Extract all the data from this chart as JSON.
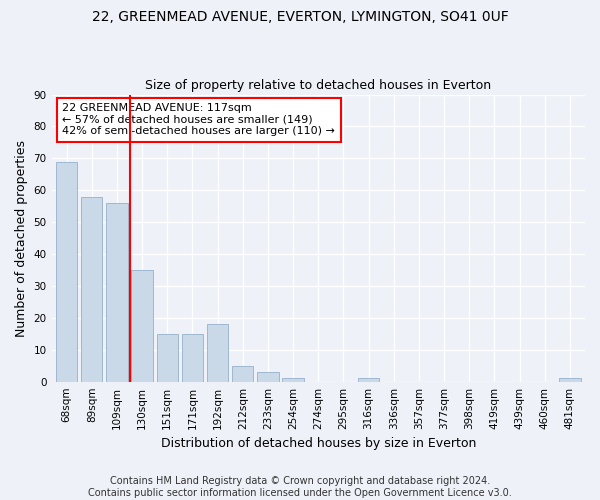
{
  "title1": "22, GREENMEAD AVENUE, EVERTON, LYMINGTON, SO41 0UF",
  "title2": "Size of property relative to detached houses in Everton",
  "xlabel": "Distribution of detached houses by size in Everton",
  "ylabel": "Number of detached properties",
  "categories": [
    "68sqm",
    "89sqm",
    "109sqm",
    "130sqm",
    "151sqm",
    "171sqm",
    "192sqm",
    "212sqm",
    "233sqm",
    "254sqm",
    "274sqm",
    "295sqm",
    "316sqm",
    "336sqm",
    "357sqm",
    "377sqm",
    "398sqm",
    "419sqm",
    "439sqm",
    "460sqm",
    "481sqm"
  ],
  "values": [
    69,
    58,
    56,
    35,
    15,
    15,
    18,
    5,
    3,
    1,
    0,
    0,
    1,
    0,
    0,
    0,
    0,
    0,
    0,
    0,
    1
  ],
  "bar_color": "#c9d9e8",
  "bar_edge_color": "#a0b8d0",
  "vline_x_idx": 2,
  "vline_color": "red",
  "annotation_line1": "22 GREENMEAD AVENUE: 117sqm",
  "annotation_line2": "← 57% of detached houses are smaller (149)",
  "annotation_line3": "42% of semi-detached houses are larger (110) →",
  "annotation_box_color": "white",
  "annotation_box_edge": "red",
  "ylim": [
    0,
    90
  ],
  "yticks": [
    0,
    10,
    20,
    30,
    40,
    50,
    60,
    70,
    80,
    90
  ],
  "background_color": "#eef2f8",
  "footer": "Contains HM Land Registry data © Crown copyright and database right 2024.\nContains public sector information licensed under the Open Government Licence v3.0.",
  "title1_fontsize": 10,
  "title2_fontsize": 9,
  "xlabel_fontsize": 9,
  "ylabel_fontsize": 9,
  "tick_fontsize": 7.5,
  "footer_fontsize": 7,
  "annotation_fontsize": 8
}
